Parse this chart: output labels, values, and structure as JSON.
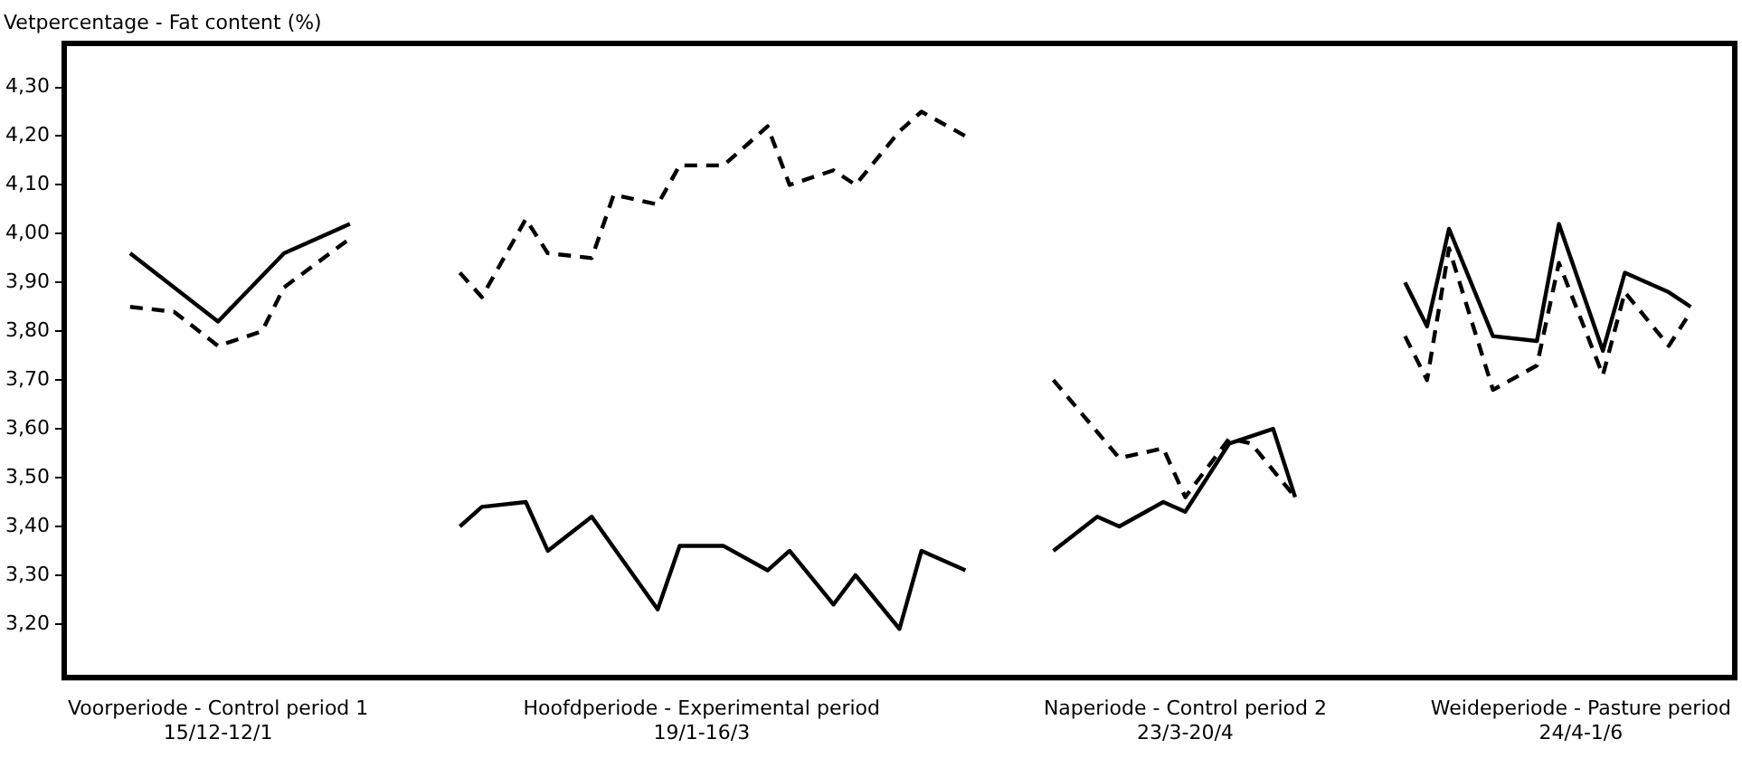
{
  "chart_data": {
    "type": "line",
    "title": "Vetpercentage - Fat content (%)",
    "ylim": [
      3.09,
      4.39
    ],
    "yticks": [
      {
        "value": 3.2,
        "label": "3,20"
      },
      {
        "value": 3.3,
        "label": "3,30"
      },
      {
        "value": 3.4,
        "label": "3,40"
      },
      {
        "value": 3.5,
        "label": "3,50"
      },
      {
        "value": 3.6,
        "label": "3,60"
      },
      {
        "value": 3.7,
        "label": "3,70"
      },
      {
        "value": 3.8,
        "label": "3,80"
      },
      {
        "value": 3.9,
        "label": "3,90"
      },
      {
        "value": 4.0,
        "label": "4,00"
      },
      {
        "value": 4.1,
        "label": "4,10"
      },
      {
        "value": 4.2,
        "label": "4,20"
      },
      {
        "value": 4.3,
        "label": "4,30"
      }
    ],
    "categories": [
      null,
      null,
      null,
      null,
      null,
      null,
      null,
      "Voorperiode - Control period 1\n15/12-12/1",
      null,
      null,
      null,
      null,
      null,
      null,
      null,
      null,
      null,
      null,
      null,
      null,
      null,
      null,
      null,
      null,
      null,
      null,
      null,
      null,
      null,
      "Hoofdperiode - Experimental period\n19/1-16/3",
      null,
      null,
      null,
      null,
      null,
      null,
      null,
      null,
      null,
      null,
      null,
      null,
      null,
      null,
      null,
      null,
      null,
      null,
      null,
      null,
      null,
      "Naperiode - Control period 2\n23/3-20/4",
      null,
      null,
      null,
      null,
      null,
      null,
      null,
      null,
      null,
      null,
      null,
      null,
      null,
      null,
      null,
      null,
      null,
      "Weideperiode - Pasture period\n24/4-1/6",
      null,
      null,
      null,
      null,
      null,
      null,
      null
    ],
    "grid": false,
    "legend": false,
    "marker": "none",
    "series": [
      {
        "color": "#000000",
        "line_style": "solid",
        "values": [
          null,
          null,
          null,
          3.96,
          null,
          null,
          null,
          3.82,
          null,
          null,
          3.96,
          null,
          null,
          4.02,
          null,
          null,
          null,
          null,
          null,
          null,
          null,
          null,
          null,
          null,
          null,
          null,
          null,
          null,
          null,
          null,
          null,
          null,
          null,
          null,
          null,
          null,
          null,
          null,
          null,
          null,
          null,
          null,
          null,
          null,
          null,
          null,
          null,
          null,
          null,
          null,
          null,
          null,
          null,
          null,
          null,
          null,
          null,
          null,
          null,
          null,
          null,
          null,
          null,
          null,
          null,
          null,
          null,
          null,
          null,
          null,
          null,
          null,
          null,
          null,
          null,
          null,
          null
        ]
      },
      {
        "color": "#000000",
        "line_style": "dashed",
        "values": [
          null,
          null,
          null,
          3.85,
          null,
          3.84,
          null,
          3.77,
          null,
          3.8,
          3.89,
          null,
          null,
          3.99,
          null,
          null,
          null,
          null,
          null,
          null,
          null,
          null,
          null,
          null,
          null,
          null,
          null,
          null,
          null,
          null,
          null,
          null,
          null,
          null,
          null,
          null,
          null,
          null,
          null,
          null,
          null,
          null,
          null,
          null,
          null,
          null,
          null,
          null,
          null,
          null,
          null,
          null,
          null,
          null,
          null,
          null,
          null,
          null,
          null,
          null,
          null,
          null,
          null,
          null,
          null,
          null,
          null,
          null,
          null,
          null,
          null,
          null,
          null,
          null,
          null,
          null,
          null
        ]
      },
      {
        "color": "#000000",
        "line_style": "dashed",
        "values": [
          null,
          null,
          null,
          null,
          null,
          null,
          null,
          null,
          null,
          null,
          null,
          null,
          null,
          null,
          null,
          null,
          null,
          null,
          3.92,
          3.87,
          null,
          4.03,
          3.96,
          null,
          3.95,
          4.08,
          null,
          4.06,
          4.14,
          null,
          4.14,
          null,
          4.22,
          4.1,
          null,
          4.13,
          4.1,
          null,
          4.21,
          4.25,
          null,
          4.2,
          null,
          null,
          null,
          null,
          null,
          null,
          null,
          null,
          null,
          null,
          null,
          null,
          null,
          null,
          null,
          null,
          null,
          null,
          null,
          null,
          null,
          null,
          null,
          null,
          null,
          null,
          null,
          null,
          null,
          null,
          null,
          null,
          null,
          null,
          null
        ]
      },
      {
        "color": "#000000",
        "line_style": "solid",
        "values": [
          null,
          null,
          null,
          null,
          null,
          null,
          null,
          null,
          null,
          null,
          null,
          null,
          null,
          null,
          null,
          null,
          null,
          null,
          3.4,
          3.44,
          null,
          3.45,
          3.35,
          null,
          3.42,
          null,
          null,
          3.23,
          3.36,
          null,
          3.36,
          null,
          3.31,
          3.35,
          null,
          3.24,
          3.3,
          null,
          3.19,
          3.35,
          null,
          3.31,
          null,
          null,
          null,
          null,
          null,
          null,
          null,
          null,
          null,
          null,
          null,
          null,
          null,
          null,
          null,
          null,
          null,
          null,
          null,
          null,
          null,
          null,
          null,
          null,
          null,
          null,
          null,
          null,
          null,
          null,
          null,
          null,
          null,
          null,
          null
        ]
      },
      {
        "color": "#000000",
        "line_style": "dashed",
        "values": [
          null,
          null,
          null,
          null,
          null,
          null,
          null,
          null,
          null,
          null,
          null,
          null,
          null,
          null,
          null,
          null,
          null,
          null,
          null,
          null,
          null,
          null,
          null,
          null,
          null,
          null,
          null,
          null,
          null,
          null,
          null,
          null,
          null,
          null,
          null,
          null,
          null,
          null,
          null,
          null,
          null,
          null,
          null,
          null,
          null,
          3.7,
          null,
          null,
          3.54,
          null,
          3.56,
          3.46,
          null,
          3.58,
          3.57,
          null,
          3.46,
          null,
          null,
          null,
          null,
          null,
          null,
          null,
          null,
          null,
          null,
          null,
          null,
          null,
          null,
          null,
          null,
          null,
          null,
          null,
          null
        ]
      },
      {
        "color": "#000000",
        "line_style": "solid",
        "values": [
          null,
          null,
          null,
          null,
          null,
          null,
          null,
          null,
          null,
          null,
          null,
          null,
          null,
          null,
          null,
          null,
          null,
          null,
          null,
          null,
          null,
          null,
          null,
          null,
          null,
          null,
          null,
          null,
          null,
          null,
          null,
          null,
          null,
          null,
          null,
          null,
          null,
          null,
          null,
          null,
          null,
          null,
          null,
          null,
          null,
          3.35,
          null,
          3.42,
          3.4,
          null,
          3.45,
          3.43,
          null,
          3.57,
          null,
          3.6,
          3.46,
          null,
          null,
          null,
          null,
          null,
          null,
          null,
          null,
          null,
          null,
          null,
          null,
          null,
          null,
          null,
          null,
          null,
          null,
          null,
          null
        ]
      },
      {
        "color": "#000000",
        "line_style": "solid",
        "values": [
          null,
          null,
          null,
          null,
          null,
          null,
          null,
          null,
          null,
          null,
          null,
          null,
          null,
          null,
          null,
          null,
          null,
          null,
          null,
          null,
          null,
          null,
          null,
          null,
          null,
          null,
          null,
          null,
          null,
          null,
          null,
          null,
          null,
          null,
          null,
          null,
          null,
          null,
          null,
          null,
          null,
          null,
          null,
          null,
          null,
          null,
          null,
          null,
          null,
          null,
          null,
          null,
          null,
          null,
          null,
          null,
          null,
          null,
          null,
          null,
          null,
          3.9,
          3.81,
          4.01,
          null,
          3.79,
          null,
          3.78,
          4.02,
          null,
          3.76,
          3.92,
          null,
          3.88,
          3.85,
          null,
          null
        ]
      },
      {
        "color": "#000000",
        "line_style": "dashed",
        "values": [
          null,
          null,
          null,
          null,
          null,
          null,
          null,
          null,
          null,
          null,
          null,
          null,
          null,
          null,
          null,
          null,
          null,
          null,
          null,
          null,
          null,
          null,
          null,
          null,
          null,
          null,
          null,
          null,
          null,
          null,
          null,
          null,
          null,
          null,
          null,
          null,
          null,
          null,
          null,
          null,
          null,
          null,
          null,
          null,
          null,
          null,
          null,
          null,
          null,
          null,
          null,
          null,
          null,
          null,
          null,
          null,
          null,
          null,
          null,
          null,
          null,
          3.79,
          3.7,
          3.97,
          null,
          3.68,
          null,
          3.73,
          3.94,
          null,
          3.71,
          3.88,
          null,
          3.77,
          3.84,
          null,
          null
        ]
      }
    ]
  }
}
